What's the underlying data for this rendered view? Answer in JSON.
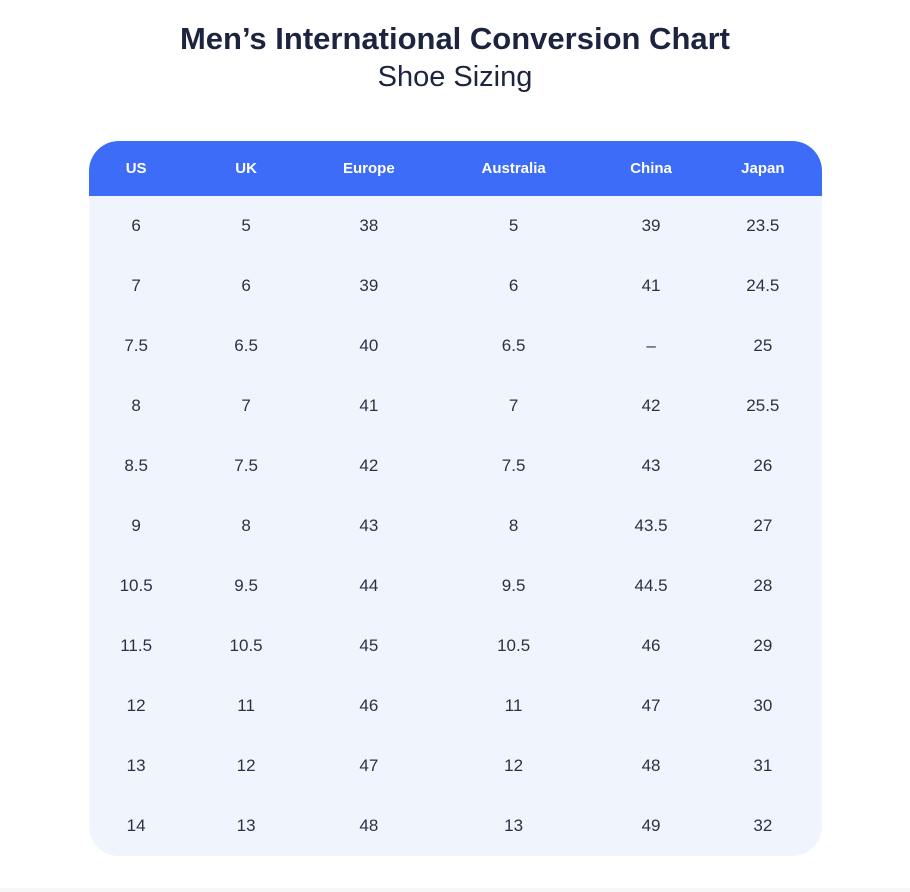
{
  "chart_data": {
    "type": "table",
    "title": "Men’s International Conversion Chart",
    "subtitle": "Shoe Sizing",
    "columns": [
      "US",
      "UK",
      "Europe",
      "Australia",
      "China",
      "Japan"
    ],
    "rows": [
      [
        "6",
        "5",
        "38",
        "5",
        "39",
        "23.5"
      ],
      [
        "7",
        "6",
        "39",
        "6",
        "41",
        "24.5"
      ],
      [
        "7.5",
        "6.5",
        "40",
        "6.5",
        "–",
        "25"
      ],
      [
        "8",
        "7",
        "41",
        "7",
        "42",
        "25.5"
      ],
      [
        "8.5",
        "7.5",
        "42",
        "7.5",
        "43",
        "26"
      ],
      [
        "9",
        "8",
        "43",
        "8",
        "43.5",
        "27"
      ],
      [
        "10.5",
        "9.5",
        "44",
        "9.5",
        "44.5",
        "28"
      ],
      [
        "11.5",
        "10.5",
        "45",
        "10.5",
        "46",
        "29"
      ],
      [
        "12",
        "11",
        "46",
        "11",
        "47",
        "30"
      ],
      [
        "13",
        "12",
        "47",
        "12",
        "48",
        "31"
      ],
      [
        "14",
        "13",
        "48",
        "13",
        "49",
        "32"
      ]
    ]
  },
  "colors": {
    "header_bg": "#3c6cf8",
    "header_text": "#ffffff",
    "body_bg": "#f0f4fc",
    "title_text": "#1d2440",
    "cell_text": "#2a3245",
    "divider": "#f7f7f8"
  }
}
